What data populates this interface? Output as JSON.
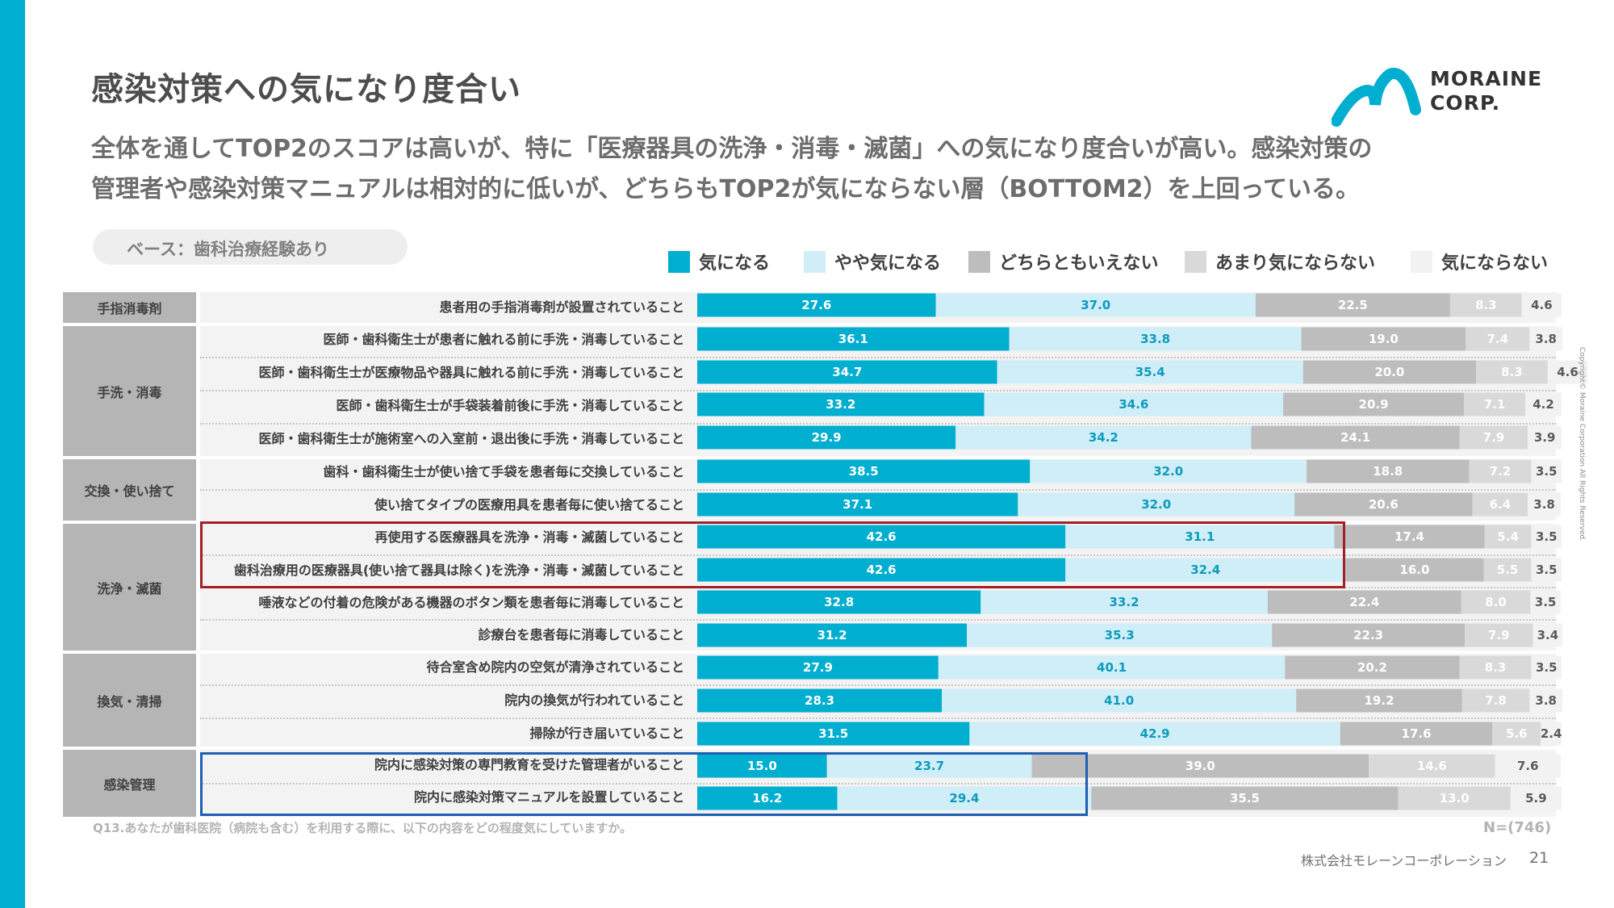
{
  "title": "感染対策への気になり度合い",
  "subtitle": {
    "line1": "全体を通してTOP2のスコアは高いが、特に「医療器具の洗浄・消毒・滅菌」への気になり度合いが高い。感染対策の",
    "line2": "管理者や感染対策マニュアルは相対的に低いが、どちらもTOP2が気にならない層（BOTTOM2）を上回っている。"
  },
  "logo": {
    "line1": "MORAINE",
    "line2": "CORP.",
    "icon": "mountain-m-logo-icon"
  },
  "base_label": "ベース：歯科治療経験あり",
  "colors": {
    "accent": "#00aecf",
    "s1": "#00aecf",
    "s2": "#cfeef7",
    "s3": "#bdbdbd",
    "s4": "#d9d9d9",
    "s5": "#f2f2f2",
    "highlight_red": "#a31f24",
    "highlight_blue": "#1f5fb4"
  },
  "chart_data": {
    "type": "bar",
    "orientation": "horizontal",
    "stacked": true,
    "unit": "%",
    "xlim": [
      0,
      100
    ],
    "series_names": [
      "気になる",
      "やや気になる",
      "どちらともいえない",
      "あまり気にならない",
      "気にならない"
    ],
    "groups": [
      {
        "name": "手指消毒剤",
        "rows": [
          {
            "label": "患者用の手指消毒剤が設置されていること",
            "values": [
              27.6,
              37.0,
              22.5,
              8.3,
              4.6
            ]
          }
        ]
      },
      {
        "name": "手洗・消毒",
        "rows": [
          {
            "label": "医師・歯科衛生士が患者に触れる前に手洗・消毒していること",
            "values": [
              36.1,
              33.8,
              19.0,
              7.4,
              3.8
            ]
          },
          {
            "label": "医師・歯科衛生士が医療物品や器具に触れる前に手洗・消毒していること",
            "values": [
              34.7,
              35.4,
              20.0,
              8.3,
              4.6
            ]
          },
          {
            "label": "医師・歯科衛生士が手袋装着前後に手洗・消毒していること",
            "values": [
              33.2,
              34.6,
              20.9,
              7.1,
              4.2
            ]
          },
          {
            "label": "医師・歯科衛生士が施術室への入室前・退出後に手洗・消毒していること",
            "values": [
              29.9,
              34.2,
              24.1,
              7.9,
              3.9
            ]
          }
        ]
      },
      {
        "name": "交換・使い捨て",
        "rows": [
          {
            "label": "歯科・歯科衛生士が使い捨て手袋を患者毎に交換していること",
            "values": [
              38.5,
              32.0,
              18.8,
              7.2,
              3.5
            ]
          },
          {
            "label": "使い捨てタイプの医療用具を患者毎に使い捨てること",
            "values": [
              37.1,
              32.0,
              20.6,
              6.4,
              3.8
            ]
          }
        ]
      },
      {
        "name": "洗浄・滅菌",
        "rows": [
          {
            "label": "再使用する医療器具を洗浄・消毒・滅菌していること",
            "values": [
              42.6,
              31.1,
              17.4,
              5.4,
              3.5
            ]
          },
          {
            "label": "歯科治療用の医療器具(使い捨て器具は除く)を洗浄・消毒・滅菌していること",
            "values": [
              42.6,
              32.4,
              16.0,
              5.5,
              3.5
            ]
          },
          {
            "label": "唾液などの付着の危険がある機器のボタン類を患者毎に消毒していること",
            "values": [
              32.8,
              33.2,
              22.4,
              8.0,
              3.5
            ]
          },
          {
            "label": "診療台を患者毎に消毒していること",
            "values": [
              31.2,
              35.3,
              22.3,
              7.9,
              3.4
            ]
          }
        ]
      },
      {
        "name": "換気・清掃",
        "rows": [
          {
            "label": "待合室含め院内の空気が清浄されていること",
            "values": [
              27.9,
              40.1,
              20.2,
              8.3,
              3.5
            ]
          },
          {
            "label": "院内の換気が行われていること",
            "values": [
              28.3,
              41.0,
              19.2,
              7.8,
              3.8
            ]
          },
          {
            "label": "掃除が行き届いていること",
            "values": [
              31.5,
              42.9,
              17.6,
              5.6,
              2.4
            ]
          }
        ]
      },
      {
        "name": "感染管理",
        "rows": [
          {
            "label": "院内に感染対策の専門教育を受けた管理者がいること",
            "values": [
              15.0,
              23.7,
              39.0,
              14.6,
              7.6
            ]
          },
          {
            "label": "院内に感染対策マニュアルを設置していること",
            "values": [
              16.2,
              29.4,
              35.5,
              13.0,
              5.9
            ]
          }
        ]
      }
    ]
  },
  "footnote": "Q13.あなたが歯科医院（病院も含む）を利用する際に、以下の内容をどの程度気にしていますか。",
  "sample_size": "N=(746)",
  "company": "株式会社モレーンコーポレーション",
  "page_number": "21",
  "copyright": "Copyright© Moraine Corporation All Rights Reserved."
}
